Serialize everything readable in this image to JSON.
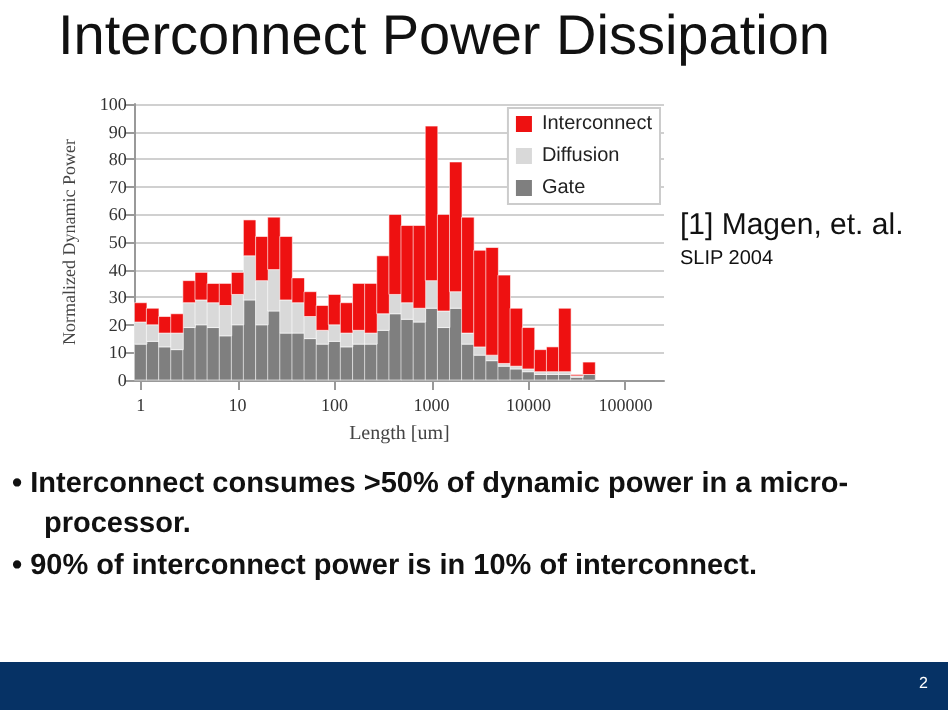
{
  "chart_data": {
    "type": "bar",
    "title": "Interconnect Power Dissipation",
    "xlabel": "Length [um]",
    "ylabel": "Normalized Dynamic Power",
    "stacked": true,
    "x": [
      1,
      1.33,
      1.78,
      2.37,
      3.16,
      4.22,
      5.62,
      7.5,
      10,
      13.3,
      17.8,
      23.7,
      31.6,
      42.2,
      56.2,
      75,
      100,
      133,
      178,
      237,
      316,
      422,
      562,
      750,
      1000,
      1334,
      1778,
      2371,
      3162,
      4217,
      5623,
      7499,
      10000,
      13335,
      17783,
      23714,
      31623,
      42170,
      56234
    ],
    "series": [
      {
        "name": "Gate",
        "color": "#7f7f7f",
        "values": [
          13,
          14,
          12,
          11,
          19,
          20,
          19,
          16,
          20,
          29,
          20,
          25,
          17,
          17,
          15,
          13,
          14,
          12,
          13,
          13,
          18,
          24,
          22,
          21,
          26,
          19,
          26,
          13,
          9,
          7,
          5,
          4,
          3,
          2,
          2,
          2,
          1,
          2,
          null
        ]
      },
      {
        "name": "Diffusion",
        "color": "#d9d9d9",
        "values": [
          8,
          6,
          5,
          6,
          9,
          9,
          9,
          11,
          11,
          16,
          16,
          15,
          12,
          11,
          8,
          5,
          6,
          5,
          5,
          4,
          6,
          7,
          6,
          5,
          10,
          6,
          6,
          4,
          3,
          2,
          1,
          1,
          1,
          1,
          1,
          1,
          0.5,
          null,
          0
        ]
      },
      {
        "name": "Interconnect",
        "color": "#ee1111",
        "values": [
          7,
          6,
          6,
          7,
          8,
          10,
          7,
          8,
          8,
          13,
          16,
          19,
          23,
          9,
          9,
          9,
          11,
          11,
          17,
          18,
          21,
          29,
          28,
          30,
          56,
          35,
          47,
          42,
          35,
          39,
          32,
          21,
          15,
          8,
          9,
          23,
          0.5,
          4.5,
          0
        ]
      }
    ],
    "log": "x",
    "xlim": [
      0.87,
      250000
    ],
    "xticks": [
      1,
      10,
      100,
      1000,
      10000,
      100000
    ],
    "ylim": [
      0,
      100
    ],
    "yticks": [
      0,
      10,
      20,
      30,
      40,
      50,
      60,
      70,
      80,
      90,
      100
    ],
    "grid": "y",
    "legend": "top right",
    "annotations": [
      "[1] Magen, et. al.",
      "SLIP 2004",
      "• Interconnect  consumes >50% of  dynamic power in a micro-processor.",
      "• 90% of interconnect power is in 10% of interconnect.",
      "2"
    ]
  }
}
